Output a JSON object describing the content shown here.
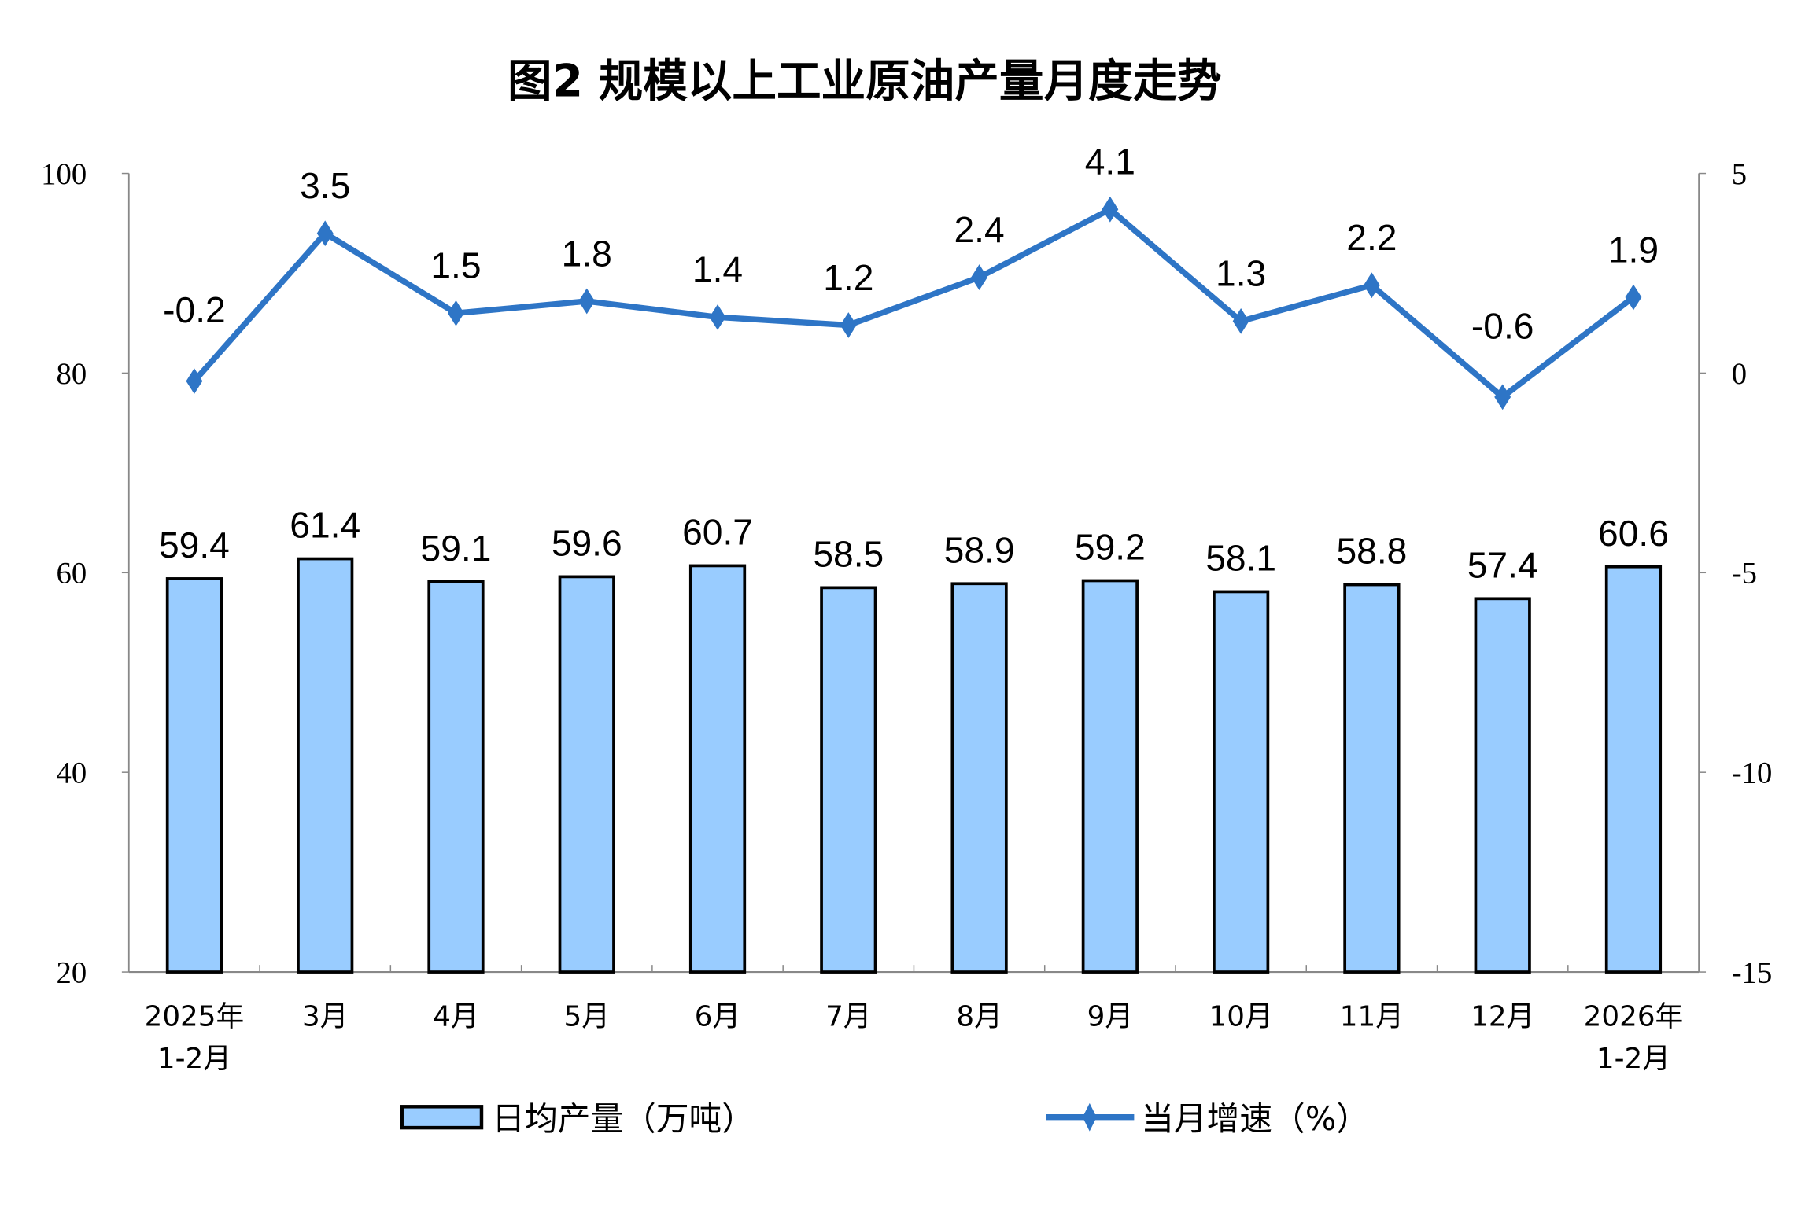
{
  "chart_data": {
    "type": "bar+line",
    "title": "图2  规模以上工业原油产量月度走势",
    "categories": [
      [
        "2025年",
        "1-2月"
      ],
      [
        "3月"
      ],
      [
        "4月"
      ],
      [
        "5月"
      ],
      [
        "6月"
      ],
      [
        "7月"
      ],
      [
        "8月"
      ],
      [
        "9月"
      ],
      [
        "10月"
      ],
      [
        "11月"
      ],
      [
        "12月"
      ],
      [
        "2026年",
        "1-2月"
      ]
    ],
    "series": [
      {
        "name": "日均产量（万吨）",
        "type": "bar",
        "axis": "left",
        "color": "#99CCFF",
        "values": [
          59.4,
          61.4,
          59.1,
          59.6,
          60.7,
          58.5,
          58.9,
          59.2,
          58.1,
          58.8,
          57.4,
          60.6
        ],
        "labels": [
          "59.4",
          "61.4",
          "59.1",
          "59.6",
          "60.7",
          "58.5",
          "58.9",
          "59.2",
          "58.1",
          "58.8",
          "57.4",
          "60.6"
        ]
      },
      {
        "name": "当月增速（%）",
        "type": "line",
        "axis": "right",
        "color": "#2E75C6",
        "values": [
          -0.2,
          3.5,
          1.5,
          1.8,
          1.4,
          1.2,
          2.4,
          4.1,
          1.3,
          2.2,
          -0.6,
          1.9
        ],
        "labels": [
          "-0.2",
          "3.5",
          "1.5",
          "1.8",
          "1.4",
          "1.2",
          "2.4",
          "4.1",
          "1.3",
          "2.2",
          "-0.6",
          "1.9"
        ]
      }
    ],
    "y_left": {
      "range": [
        20,
        100
      ],
      "ticks": [
        "20",
        "40",
        "60",
        "80",
        "100"
      ]
    },
    "y_right": {
      "range": [
        -15,
        5
      ],
      "ticks": [
        "-15",
        "-10",
        "-5",
        "0",
        "5"
      ]
    },
    "grid": false,
    "legend": "bottom"
  }
}
